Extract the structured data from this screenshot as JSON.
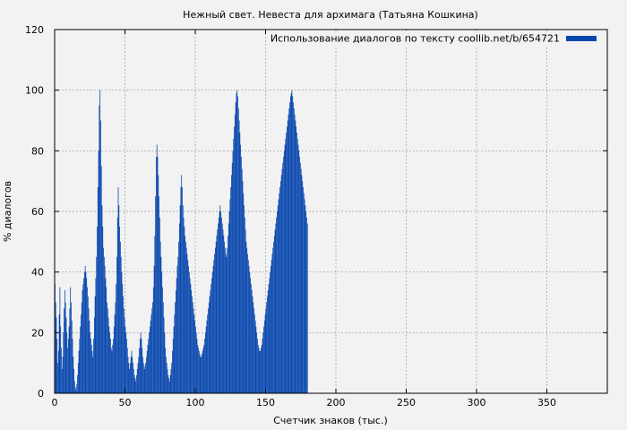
{
  "chart_data": {
    "type": "bar",
    "title": "Нежный свет. Невеста для архимага (Татьяна Кошкина)",
    "xlabel": "Счетчик знаков (тыс.)",
    "ylabel": "% диалогов",
    "xlim": [
      0,
      393
    ],
    "ylim": [
      0,
      120
    ],
    "xticks": [
      0,
      50,
      100,
      150,
      200,
      250,
      300,
      350
    ],
    "yticks": [
      0,
      20,
      40,
      60,
      80,
      100,
      120
    ],
    "grid": true,
    "legend_position": "top-right",
    "series": [
      {
        "name": "Использование диалогов по тексту coollib.net/b/654721",
        "color": "#0645ad",
        "x_step": 0.5,
        "values": [
          36,
          30,
          25,
          18,
          10,
          14,
          26,
          35,
          22,
          15,
          8,
          12,
          20,
          28,
          34,
          30,
          25,
          20,
          15,
          18,
          22,
          28,
          35,
          30,
          24,
          18,
          12,
          8,
          4,
          2,
          1,
          3,
          6,
          10,
          14,
          18,
          22,
          26,
          30,
          34,
          36,
          38,
          40,
          42,
          40,
          38,
          35,
          32,
          28,
          24,
          20,
          18,
          16,
          14,
          12,
          18,
          25,
          32,
          38,
          45,
          55,
          68,
          80,
          95,
          100,
          90,
          75,
          62,
          55,
          48,
          45,
          42,
          38,
          35,
          30,
          28,
          25,
          22,
          20,
          18,
          15,
          14,
          16,
          18,
          22,
          26,
          30,
          36,
          45,
          58,
          68,
          62,
          55,
          50,
          45,
          40,
          36,
          32,
          28,
          25,
          22,
          20,
          18,
          15,
          12,
          10,
          8,
          10,
          12,
          14,
          12,
          10,
          8,
          6,
          5,
          4,
          6,
          8,
          10,
          12,
          15,
          18,
          20,
          18,
          15,
          12,
          10,
          8,
          9,
          10,
          12,
          14,
          16,
          18,
          20,
          22,
          24,
          26,
          28,
          30,
          35,
          42,
          52,
          65,
          78,
          82,
          78,
          72,
          65,
          58,
          50,
          45,
          40,
          35,
          30,
          25,
          20,
          15,
          12,
          10,
          8,
          6,
          5,
          4,
          6,
          8,
          10,
          14,
          18,
          22,
          26,
          30,
          34,
          38,
          42,
          45,
          50,
          56,
          62,
          68,
          72,
          68,
          62,
          58,
          55,
          52,
          50,
          48,
          46,
          44,
          42,
          40,
          38,
          36,
          34,
          32,
          30,
          28,
          26,
          24,
          22,
          20,
          18,
          16,
          15,
          14,
          13,
          12,
          12,
          13,
          14,
          15,
          16,
          18,
          20,
          22,
          24,
          26,
          28,
          30,
          32,
          34,
          36,
          38,
          40,
          42,
          44,
          46,
          48,
          50,
          52,
          54,
          56,
          58,
          60,
          62,
          60,
          58,
          56,
          54,
          52,
          50,
          48,
          46,
          45,
          48,
          52,
          56,
          60,
          64,
          68,
          72,
          76,
          80,
          84,
          88,
          92,
          96,
          99,
          100,
          98,
          94,
          90,
          86,
          82,
          78,
          74,
          70,
          66,
          62,
          58,
          54,
          50,
          48,
          46,
          44,
          42,
          40,
          38,
          36,
          34,
          32,
          30,
          28,
          26,
          24,
          22,
          20,
          18,
          16,
          15,
          14,
          14,
          15,
          16,
          18,
          20,
          22,
          24,
          26,
          28,
          30,
          32,
          34,
          36,
          38,
          40,
          42,
          44,
          46,
          48,
          50,
          52,
          54,
          56,
          58,
          60,
          62,
          64,
          66,
          68,
          70,
          72,
          74,
          76,
          78,
          80,
          82,
          84,
          86,
          88,
          90,
          92,
          94,
          96,
          98,
          99,
          100,
          98,
          96,
          94,
          92,
          90,
          88,
          86,
          84,
          82,
          80,
          78,
          76,
          74,
          72,
          70,
          68,
          66,
          64,
          62,
          60,
          58,
          56
        ]
      }
    ]
  }
}
